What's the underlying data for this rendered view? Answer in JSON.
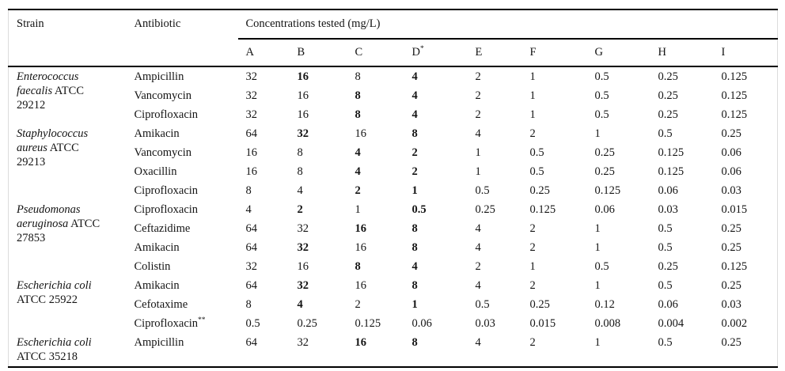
{
  "header": {
    "strain": "Strain",
    "antibiotic": "Antibiotic",
    "concentrations_title": "Concentrations tested (mg/L)",
    "letter_columns": [
      {
        "label": "A",
        "sup": ""
      },
      {
        "label": "B",
        "sup": ""
      },
      {
        "label": "C",
        "sup": ""
      },
      {
        "label": "D",
        "sup": "*"
      },
      {
        "label": "E",
        "sup": ""
      },
      {
        "label": "F",
        "sup": ""
      },
      {
        "label": "G",
        "sup": ""
      },
      {
        "label": "H",
        "sup": ""
      },
      {
        "label": "I",
        "sup": ""
      }
    ]
  },
  "strains": [
    {
      "name_italic": "Enterococcus faecalis",
      "name_regular": "ATCC 29212",
      "rows": [
        {
          "antibiotic": "Ampicillin",
          "antibiotic_sup": "",
          "values": [
            "32",
            "16",
            "8",
            "4",
            "2",
            "1",
            "0.5",
            "0.25",
            "0.125"
          ],
          "bold_indices": [
            1,
            3
          ]
        },
        {
          "antibiotic": "Vancomycin",
          "antibiotic_sup": "",
          "values": [
            "32",
            "16",
            "8",
            "4",
            "2",
            "1",
            "0.5",
            "0.25",
            "0.125"
          ],
          "bold_indices": [
            2,
            3
          ]
        },
        {
          "antibiotic": "Ciprofloxacin",
          "antibiotic_sup": "",
          "values": [
            "32",
            "16",
            "8",
            "4",
            "2",
            "1",
            "0.5",
            "0.25",
            "0.125"
          ],
          "bold_indices": [
            2,
            3
          ]
        }
      ]
    },
    {
      "name_italic": "Staphylococcus aureus",
      "name_regular": "ATCC 29213",
      "rows": [
        {
          "antibiotic": "Amikacin",
          "antibiotic_sup": "",
          "values": [
            "64",
            "32",
            "16",
            "8",
            "4",
            "2",
            "1",
            "0.5",
            "0.25"
          ],
          "bold_indices": [
            1,
            3
          ]
        },
        {
          "antibiotic": "Vancomycin",
          "antibiotic_sup": "",
          "values": [
            "16",
            "8",
            "4",
            "2",
            "1",
            "0.5",
            "0.25",
            "0.125",
            "0.06"
          ],
          "bold_indices": [
            2,
            3
          ]
        },
        {
          "antibiotic": "Oxacillin",
          "antibiotic_sup": "",
          "values": [
            "16",
            "8",
            "4",
            "2",
            "1",
            "0.5",
            "0.25",
            "0.125",
            "0.06"
          ],
          "bold_indices": [
            2,
            3
          ]
        },
        {
          "antibiotic": "Ciprofloxacin",
          "antibiotic_sup": "",
          "values": [
            "8",
            "4",
            "2",
            "1",
            "0.5",
            "0.25",
            "0.125",
            "0.06",
            "0.03"
          ],
          "bold_indices": [
            2,
            3
          ]
        }
      ]
    },
    {
      "name_italic": "Pseudomonas aeruginosa",
      "name_regular": "ATCC 27853",
      "rows": [
        {
          "antibiotic": "Ciprofloxacin",
          "antibiotic_sup": "",
          "values": [
            "4",
            "2",
            "1",
            "0.5",
            "0.25",
            "0.125",
            "0.06",
            "0.03",
            "0.015"
          ],
          "bold_indices": [
            1,
            3
          ]
        },
        {
          "antibiotic": "Ceftazidime",
          "antibiotic_sup": "",
          "values": [
            "64",
            "32",
            "16",
            "8",
            "4",
            "2",
            "1",
            "0.5",
            "0.25"
          ],
          "bold_indices": [
            2,
            3
          ]
        },
        {
          "antibiotic": "Amikacin",
          "antibiotic_sup": "",
          "values": [
            "64",
            "32",
            "16",
            "8",
            "4",
            "2",
            "1",
            "0.5",
            "0.25"
          ],
          "bold_indices": [
            1,
            3
          ]
        },
        {
          "antibiotic": "Colistin",
          "antibiotic_sup": "",
          "values": [
            "32",
            "16",
            "8",
            "4",
            "2",
            "1",
            "0.5",
            "0.25",
            "0.125"
          ],
          "bold_indices": [
            2,
            3
          ]
        }
      ]
    },
    {
      "name_italic": "Escherichia coli",
      "name_regular": "ATCC 25922",
      "rows": [
        {
          "antibiotic": "Amikacin",
          "antibiotic_sup": "",
          "values": [
            "64",
            "32",
            "16",
            "8",
            "4",
            "2",
            "1",
            "0.5",
            "0.25"
          ],
          "bold_indices": [
            1,
            3
          ]
        },
        {
          "antibiotic": "Cefotaxime",
          "antibiotic_sup": "",
          "values": [
            "8",
            "4",
            "2",
            "1",
            "0.5",
            "0.25",
            "0.12",
            "0.06",
            "0.03"
          ],
          "bold_indices": [
            1,
            3
          ]
        },
        {
          "antibiotic": "Ciprofloxacin",
          "antibiotic_sup": "**",
          "values": [
            "0.5",
            "0.25",
            "0.125",
            "0.06",
            "0.03",
            "0.015",
            "0.008",
            "0.004",
            "0.002"
          ],
          "bold_indices": []
        }
      ]
    },
    {
      "name_italic": "Escherichia coli",
      "name_regular": "ATCC 35218",
      "rows": [
        {
          "antibiotic": "Ampicillin",
          "antibiotic_sup": "",
          "values": [
            "64",
            "32",
            "16",
            "8",
            "4",
            "2",
            "1",
            "0.5",
            "0.25"
          ],
          "bold_indices": [
            2,
            3
          ]
        }
      ]
    }
  ]
}
